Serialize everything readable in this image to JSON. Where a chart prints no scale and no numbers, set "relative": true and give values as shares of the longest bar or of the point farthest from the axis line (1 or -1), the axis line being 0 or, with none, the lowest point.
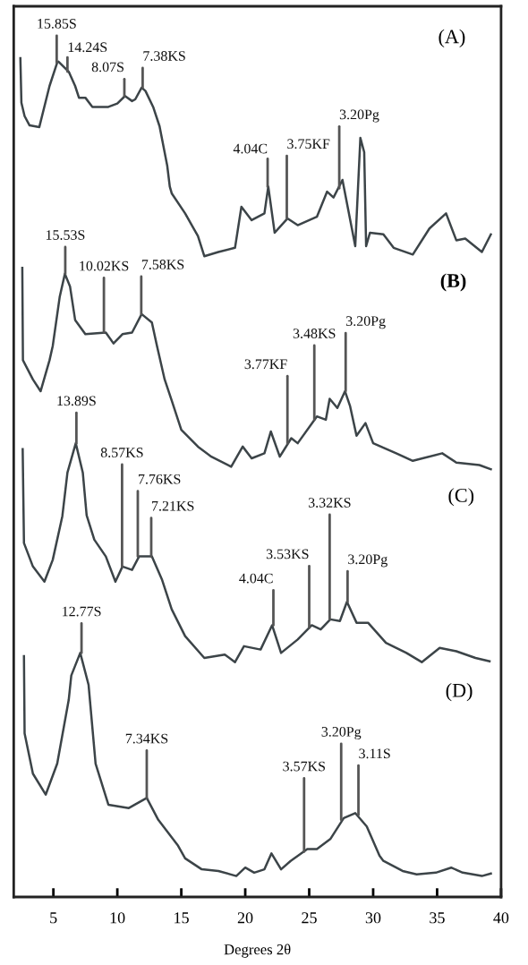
{
  "chart_data": {
    "type": "line",
    "relative": true,
    "xlabel": "Degrees 2θ",
    "xlim": [
      1.9,
      40
    ],
    "xticks": [
      5,
      10,
      15,
      20,
      25,
      30,
      35,
      40
    ],
    "series": [
      {
        "color": "#3c4448",
        "x": [
          2.42,
          2.5,
          2.75,
          3.14,
          3.9,
          4.7,
          5.3,
          5.4,
          6.2,
          6.7,
          7.0,
          7.5,
          8.05,
          9.3,
          10.0,
          10.6,
          11.15,
          11.4,
          11.9,
          12.2,
          12.8,
          13.3,
          13.9,
          14.1,
          14.25,
          15.3,
          16.3,
          16.8,
          17.9,
          19.2,
          19.7,
          20.5,
          21.5,
          21.8,
          22.3,
          23.3,
          24.1,
          25.6,
          26.4,
          26.9,
          27.6,
          28.6,
          29.0,
          29.3,
          29.45,
          29.75,
          30.8,
          31.6,
          33.1,
          34.4,
          35.7,
          36.5,
          37.2,
          38.5,
          39.2
        ],
        "values": [
          1.0,
          0.947,
          0.931,
          0.92,
          0.918,
          0.967,
          0.995,
          0.996,
          0.984,
          0.967,
          0.953,
          0.953,
          0.942,
          0.942,
          0.946,
          0.955,
          0.949,
          0.951,
          0.965,
          0.961,
          0.942,
          0.919,
          0.872,
          0.847,
          0.839,
          0.815,
          0.788,
          0.764,
          0.769,
          0.774,
          0.823,
          0.807,
          0.815,
          0.847,
          0.792,
          0.809,
          0.801,
          0.811,
          0.841,
          0.834,
          0.855,
          0.776,
          0.905,
          0.888,
          0.776,
          0.792,
          0.79,
          0.774,
          0.766,
          0.797,
          0.815,
          0.783,
          0.785,
          0.769,
          0.79
        ]
      },
      {
        "color": "#3c4448",
        "x": [
          2.57,
          2.62,
          3.4,
          4.0,
          4.7,
          4.95,
          5.5,
          5.9,
          6.3,
          6.7,
          7.5,
          9.1,
          9.7,
          10.4,
          11.15,
          11.9,
          12.7,
          13.1,
          13.7,
          14.25,
          15.0,
          16.3,
          17.35,
          18.9,
          19.8,
          20.5,
          21.5,
          22.0,
          22.7,
          23.6,
          24.1,
          25.6,
          26.3,
          26.6,
          27.2,
          27.8,
          28.2,
          28.7,
          29.4,
          30.0,
          31.8,
          33.1,
          35.4,
          36.5,
          38.3,
          39.2
        ],
        "values": [
          0.75,
          0.64,
          0.617,
          0.603,
          0.64,
          0.657,
          0.716,
          0.743,
          0.728,
          0.688,
          0.671,
          0.673,
          0.66,
          0.671,
          0.673,
          0.695,
          0.685,
          0.657,
          0.617,
          0.592,
          0.557,
          0.537,
          0.525,
          0.513,
          0.537,
          0.523,
          0.529,
          0.555,
          0.525,
          0.547,
          0.541,
          0.573,
          0.569,
          0.594,
          0.583,
          0.603,
          0.585,
          0.55,
          0.565,
          0.541,
          0.529,
          0.52,
          0.529,
          0.518,
          0.515,
          0.51
        ]
      },
      {
        "color": "#3c4448",
        "x": [
          2.6,
          2.7,
          3.4,
          4.3,
          4.95,
          5.7,
          6.1,
          6.75,
          7.3,
          7.6,
          8.2,
          9.1,
          9.85,
          10.4,
          11.15,
          11.7,
          12.7,
          13.5,
          14.25,
          15.3,
          16.8,
          18.4,
          19.2,
          19.9,
          21.2,
          22.1,
          22.8,
          24.1,
          25.2,
          25.9,
          26.65,
          27.4,
          27.95,
          28.7,
          29.6,
          31.0,
          32.6,
          33.8,
          35.2,
          36.5,
          38.0,
          39.1
        ],
        "values": [
          0.534,
          0.422,
          0.394,
          0.376,
          0.402,
          0.454,
          0.506,
          0.541,
          0.506,
          0.455,
          0.426,
          0.406,
          0.376,
          0.394,
          0.39,
          0.406,
          0.406,
          0.378,
          0.343,
          0.311,
          0.285,
          0.289,
          0.28,
          0.299,
          0.295,
          0.324,
          0.291,
          0.307,
          0.324,
          0.319,
          0.331,
          0.329,
          0.352,
          0.327,
          0.327,
          0.303,
          0.291,
          0.28,
          0.297,
          0.293,
          0.285,
          0.281
        ]
      },
      {
        "color": "#3c4448",
        "x": [
          2.7,
          2.75,
          3.4,
          4.4,
          5.3,
          6.2,
          6.4,
          7.1,
          7.75,
          8.3,
          9.3,
          10.9,
          12.3,
          13.2,
          14.75,
          15.3,
          16.6,
          17.9,
          19.3,
          20.0,
          20.7,
          21.5,
          22.05,
          22.8,
          23.55,
          24.85,
          25.6,
          26.65,
          27.7,
          28.6,
          29.5,
          30.5,
          30.8,
          32.3,
          33.4,
          34.9,
          36.1,
          37.0,
          38.5,
          39.2
        ],
        "values": [
          0.287,
          0.195,
          0.147,
          0.122,
          0.159,
          0.235,
          0.264,
          0.291,
          0.253,
          0.159,
          0.11,
          0.106,
          0.118,
          0.092,
          0.061,
          0.046,
          0.033,
          0.031,
          0.025,
          0.035,
          0.029,
          0.033,
          0.052,
          0.033,
          0.043,
          0.057,
          0.057,
          0.069,
          0.094,
          0.1,
          0.084,
          0.049,
          0.043,
          0.031,
          0.027,
          0.029,
          0.035,
          0.029,
          0.025,
          0.028
        ]
      }
    ],
    "annotations": [
      "(A)",
      {
        "text": "15.85S",
        "x": 5.26,
        "y": 0.995
      },
      {
        "text": "14.24S",
        "x": 6.1,
        "y": 0.984
      },
      {
        "text": "8.07S",
        "x": 10.55,
        "y": 0.955
      },
      {
        "text": "7.38KS",
        "x": 11.98,
        "y": 0.965
      },
      {
        "text": "4.04C",
        "x": 21.75,
        "y": 0.847
      },
      {
        "text": "3.75KF",
        "x": 23.25,
        "y": 0.809
      },
      {
        "text": "3.20Pg",
        "x": 27.35,
        "y": 0.845
      },
      "(B)",
      {
        "text": "15.53S",
        "x": 5.93,
        "y": 0.743
      },
      {
        "text": "10.02KS",
        "x": 8.95,
        "y": 0.673
      },
      {
        "text": "7.58KS",
        "x": 11.87,
        "y": 0.695
      },
      {
        "text": "3.48KS",
        "x": 25.4,
        "y": 0.569
      },
      {
        "text": "3.20Pg",
        "x": 27.85,
        "y": 0.603
      },
      {
        "text": "3.77KF",
        "x": 23.3,
        "y": 0.541
      },
      "(C)",
      {
        "text": "13.89S",
        "x": 6.8,
        "y": 0.541
      },
      {
        "text": "8.57KS",
        "x": 10.37,
        "y": 0.394
      },
      {
        "text": "7.76KS",
        "x": 11.6,
        "y": 0.406
      },
      {
        "text": "7.21KS",
        "x": 12.65,
        "y": 0.406
      },
      {
        "text": "3.32KS",
        "x": 26.6,
        "y": 0.331
      },
      {
        "text": "3.53KS",
        "x": 25.0,
        "y": 0.321
      },
      {
        "text": "3.20Pg",
        "x": 28.0,
        "y": 0.352
      },
      {
        "text": "4.04C",
        "x": 22.2,
        "y": 0.324
      },
      "(D)",
      {
        "text": "12.77S",
        "x": 7.2,
        "y": 0.291
      },
      {
        "text": "7.34KS",
        "x": 12.3,
        "y": 0.118
      },
      {
        "text": "3.57KS",
        "x": 24.6,
        "y": 0.054
      },
      {
        "text": "3.20Pg",
        "x": 27.5,
        "y": 0.092
      },
      {
        "text": "3.11S",
        "x": 28.85,
        "y": 0.098
      }
    ]
  }
}
